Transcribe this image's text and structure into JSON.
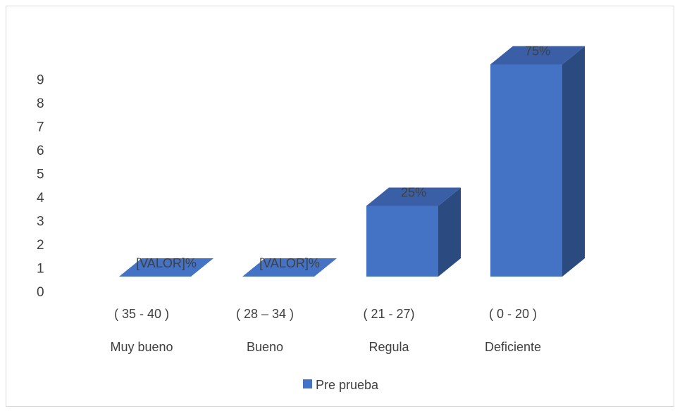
{
  "chart_data": {
    "type": "bar",
    "categories": [
      "Muy bueno",
      "Bueno",
      "Regula",
      "Deficiente"
    ],
    "range_labels": [
      "(  35  -  40 )",
      "(  28 – 34  )",
      "(  21  -  27)",
      "( 0  - 20 )"
    ],
    "series": [
      {
        "name": "Pre prueba",
        "values": [
          0,
          0,
          3,
          9
        ],
        "data_labels": [
          "[VALOR]%",
          "[VALOR]%",
          "25%",
          "75%"
        ]
      }
    ],
    "yticks": [
      "0",
      "1",
      "2",
      "3",
      "4",
      "5",
      "6",
      "7",
      "8",
      "9"
    ],
    "ylim": [
      0,
      9
    ],
    "grid": false,
    "legend_position": "bottom",
    "colors": {
      "front": "#4472c4",
      "top": "#3a5fa6",
      "side": "#2b4a80",
      "text": "#404040",
      "border": "#d9d9d9"
    }
  }
}
